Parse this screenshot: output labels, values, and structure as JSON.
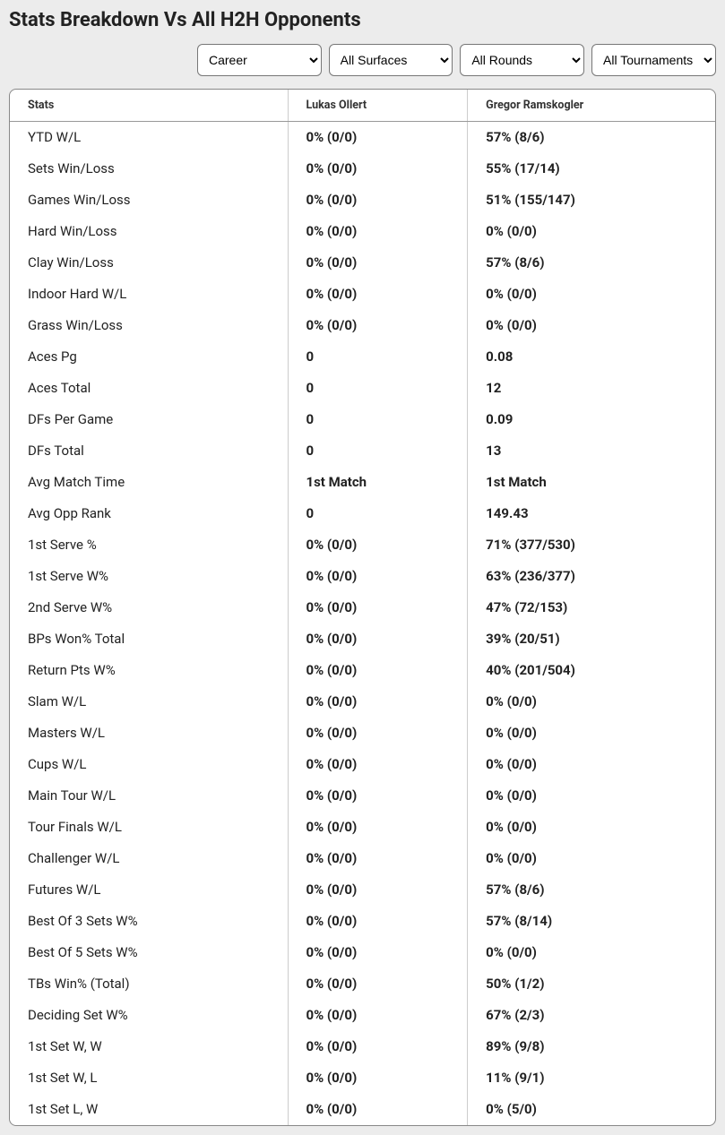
{
  "title": "Stats Breakdown Vs All H2H Opponents",
  "filters": {
    "career": "Career",
    "surfaces": "All Surfaces",
    "rounds": "All Rounds",
    "tournaments": "All Tournaments"
  },
  "columns": {
    "stats": "Stats",
    "p1": "Lukas Ollert",
    "p2": "Gregor Ramskogler"
  },
  "rows": [
    {
      "label": "YTD W/L",
      "p1": "0% (0/0)",
      "p2": "57% (8/6)"
    },
    {
      "label": "Sets Win/Loss",
      "p1": "0% (0/0)",
      "p2": "55% (17/14)"
    },
    {
      "label": "Games Win/Loss",
      "p1": "0% (0/0)",
      "p2": "51% (155/147)"
    },
    {
      "label": "Hard Win/Loss",
      "p1": "0% (0/0)",
      "p2": "0% (0/0)"
    },
    {
      "label": "Clay Win/Loss",
      "p1": "0% (0/0)",
      "p2": "57% (8/6)"
    },
    {
      "label": "Indoor Hard W/L",
      "p1": "0% (0/0)",
      "p2": "0% (0/0)"
    },
    {
      "label": "Grass Win/Loss",
      "p1": "0% (0/0)",
      "p2": "0% (0/0)"
    },
    {
      "label": "Aces Pg",
      "p1": "0",
      "p2": "0.08"
    },
    {
      "label": "Aces Total",
      "p1": "0",
      "p2": "12"
    },
    {
      "label": "DFs Per Game",
      "p1": "0",
      "p2": "0.09"
    },
    {
      "label": "DFs Total",
      "p1": "0",
      "p2": "13"
    },
    {
      "label": "Avg Match Time",
      "p1": "1st Match",
      "p2": "1st Match"
    },
    {
      "label": "Avg Opp Rank",
      "p1": "0",
      "p2": "149.43"
    },
    {
      "label": "1st Serve %",
      "p1": "0% (0/0)",
      "p2": "71% (377/530)"
    },
    {
      "label": "1st Serve W%",
      "p1": "0% (0/0)",
      "p2": "63% (236/377)"
    },
    {
      "label": "2nd Serve W%",
      "p1": "0% (0/0)",
      "p2": "47% (72/153)"
    },
    {
      "label": "BPs Won% Total",
      "p1": "0% (0/0)",
      "p2": "39% (20/51)"
    },
    {
      "label": "Return Pts W%",
      "p1": "0% (0/0)",
      "p2": "40% (201/504)"
    },
    {
      "label": "Slam W/L",
      "p1": "0% (0/0)",
      "p2": "0% (0/0)"
    },
    {
      "label": "Masters W/L",
      "p1": "0% (0/0)",
      "p2": "0% (0/0)"
    },
    {
      "label": "Cups W/L",
      "p1": "0% (0/0)",
      "p2": "0% (0/0)"
    },
    {
      "label": "Main Tour W/L",
      "p1": "0% (0/0)",
      "p2": "0% (0/0)"
    },
    {
      "label": "Tour Finals W/L",
      "p1": "0% (0/0)",
      "p2": "0% (0/0)"
    },
    {
      "label": "Challenger W/L",
      "p1": "0% (0/0)",
      "p2": "0% (0/0)"
    },
    {
      "label": "Futures W/L",
      "p1": "0% (0/0)",
      "p2": "57% (8/6)"
    },
    {
      "label": "Best Of 3 Sets W%",
      "p1": "0% (0/0)",
      "p2": "57% (8/14)"
    },
    {
      "label": "Best Of 5 Sets W%",
      "p1": "0% (0/0)",
      "p2": "0% (0/0)"
    },
    {
      "label": "TBs Win% (Total)",
      "p1": "0% (0/0)",
      "p2": "50% (1/2)"
    },
    {
      "label": "Deciding Set W%",
      "p1": "0% (0/0)",
      "p2": "67% (2/3)"
    },
    {
      "label": "1st Set W, W",
      "p1": "0% (0/0)",
      "p2": "89% (9/8)"
    },
    {
      "label": "1st Set W, L",
      "p1": "0% (0/0)",
      "p2": "11% (9/1)"
    },
    {
      "label": "1st Set L, W",
      "p1": "0% (0/0)",
      "p2": "0% (5/0)"
    }
  ]
}
